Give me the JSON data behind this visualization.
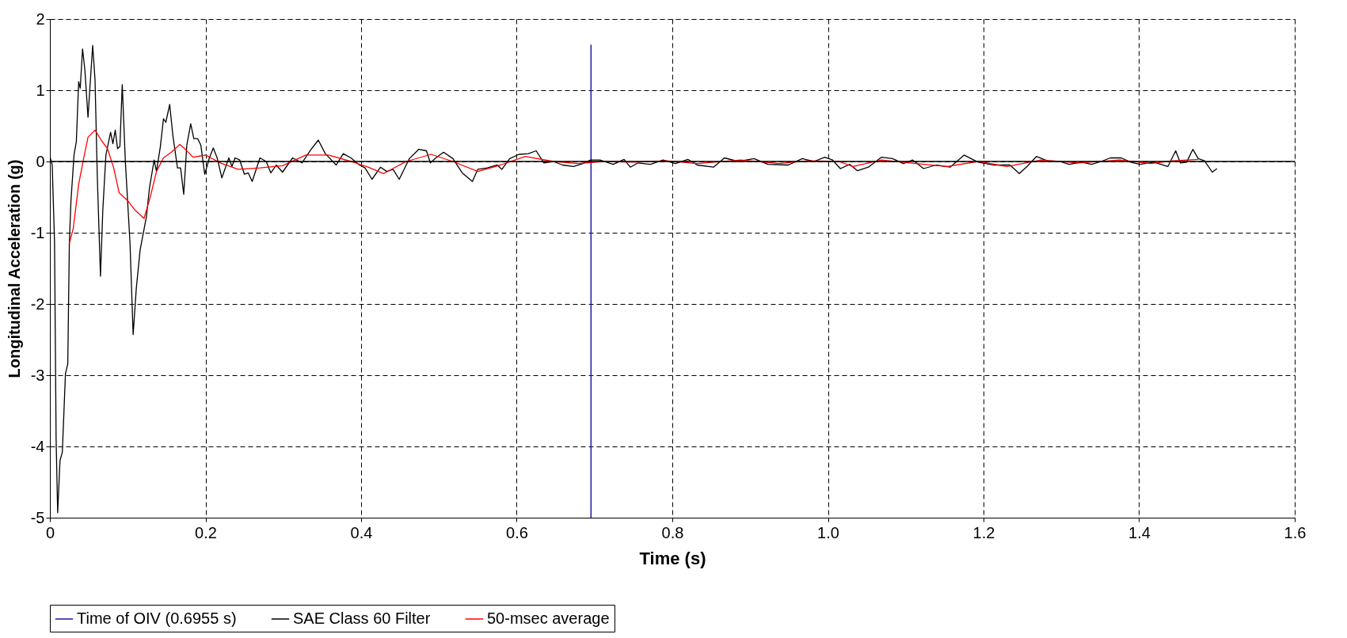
{
  "chart_data": {
    "type": "line",
    "xlabel": "Time (s)",
    "ylabel": "Longitudinal Acceleration (g)",
    "xlim": [
      0,
      1.6
    ],
    "ylim": [
      -5,
      2
    ],
    "xticks": [
      0,
      {
        "value": 0.2,
        "label": "0.2"
      },
      {
        "value": 0.4,
        "label": "0.4"
      },
      {
        "value": 0.6,
        "label": "0.6"
      },
      {
        "value": 0.8,
        "label": "0.8"
      },
      {
        "value": 1,
        "label": "1.0"
      },
      {
        "value": 1.2,
        "label": "1.2"
      },
      {
        "value": 1.4,
        "label": "1.4"
      },
      {
        "value": 1.6,
        "label": "1.6"
      }
    ],
    "yticks": [
      -5,
      -4,
      -3,
      -2,
      -1,
      0,
      1,
      2
    ],
    "grid": true,
    "legend": "bottom left",
    "line_style": "solid",
    "marker": "none",
    "ref_lines": [
      {
        "axis": "y",
        "value": 0,
        "color": "#000000"
      }
    ],
    "series": [
      {
        "name": "Time of OIV (0.6955 s)",
        "color": "#1a1a9c",
        "x": [
          0.6955,
          0.6955
        ],
        "values": [
          -5,
          1.64
        ]
      },
      {
        "name": "SAE Class 60 Filter",
        "color": "#000000",
        "x": [
          0,
          0.003,
          0.006,
          0.008,
          0.01,
          0.013,
          0.016,
          0.02,
          0.023,
          0.025,
          0.027,
          0.031,
          0.034,
          0.037,
          0.039,
          0.042,
          0.045,
          0.049,
          0.055,
          0.058,
          0.061,
          0.065,
          0.068,
          0.072,
          0.078,
          0.081,
          0.084,
          0.087,
          0.09,
          0.093,
          0.097,
          0.103,
          0.107,
          0.111,
          0.116,
          0.124,
          0.128,
          0.134,
          0.137,
          0.142,
          0.146,
          0.149,
          0.154,
          0.158,
          0.164,
          0.168,
          0.172,
          0.176,
          0.181,
          0.185,
          0.19,
          0.194,
          0.199,
          0.205,
          0.21,
          0.215,
          0.221,
          0.23,
          0.234,
          0.238,
          0.244,
          0.25,
          0.255,
          0.26,
          0.27,
          0.278,
          0.284,
          0.291,
          0.299,
          0.312,
          0.324,
          0.335,
          0.345,
          0.354,
          0.368,
          0.377,
          0.387,
          0.398,
          0.405,
          0.414,
          0.425,
          0.433,
          0.441,
          0.449,
          0.462,
          0.474,
          0.484,
          0.489,
          0.496,
          0.506,
          0.518,
          0.53,
          0.543,
          0.55,
          0.562,
          0.575,
          0.581,
          0.591,
          0.603,
          0.615,
          0.625,
          0.635,
          0.647,
          0.659,
          0.673,
          0.685,
          0.695,
          0.707,
          0.724,
          0.738,
          0.746,
          0.756,
          0.772,
          0.788,
          0.804,
          0.82,
          0.832,
          0.853,
          0.867,
          0.885,
          0.905,
          0.923,
          0.949,
          0.967,
          0.982,
          0.996,
          1.006,
          1.016,
          1.028,
          1.038,
          1.052,
          1.069,
          1.083,
          1.097,
          1.109,
          1.123,
          1.139,
          1.157,
          1.175,
          1.193,
          1.214,
          1.234,
          1.246,
          1.256,
          1.268,
          1.282,
          1.298,
          1.31,
          1.326,
          1.339,
          1.351,
          1.363,
          1.377,
          1.389,
          1.401,
          1.419,
          1.437,
          1.447,
          1.453,
          1.461,
          1.469,
          1.476,
          1.484,
          1.494,
          1.5
        ],
        "values": [
          0.07,
          -0.05,
          -1.15,
          -3.9,
          -4.93,
          -4.2,
          -4.08,
          -2.98,
          -2.84,
          -1.15,
          -0.57,
          0.09,
          0.28,
          1.12,
          1.03,
          1.58,
          1.28,
          0.62,
          1.63,
          1.15,
          -0.23,
          -1.61,
          -0.69,
          0.09,
          0.41,
          0.25,
          0.44,
          0.18,
          0.21,
          1.08,
          0.0,
          -1.15,
          -2.43,
          -1.79,
          -1.24,
          -0.78,
          -0.37,
          0.02,
          -0.14,
          0.21,
          0.6,
          0.55,
          0.8,
          0.37,
          -0.09,
          -0.09,
          -0.46,
          0.23,
          0.53,
          0.32,
          0.32,
          0.23,
          -0.18,
          0.05,
          0.19,
          0.05,
          -0.23,
          0.05,
          -0.07,
          0.05,
          0.02,
          -0.18,
          -0.16,
          -0.28,
          0.05,
          0,
          -0.16,
          -0.05,
          -0.15,
          0.05,
          -0.02,
          0.16,
          0.3,
          0.11,
          -0.05,
          0.11,
          0.05,
          -0.05,
          -0.09,
          -0.25,
          -0.08,
          -0.14,
          -0.11,
          -0.25,
          0.04,
          0.17,
          0.15,
          -0.02,
          0.05,
          0.13,
          0.04,
          -0.16,
          -0.28,
          -0.11,
          -0.09,
          -0.05,
          -0.11,
          0.04,
          0.1,
          0.11,
          0.15,
          -0.02,
          0,
          -0.05,
          -0.07,
          -0.03,
          0.02,
          0.02,
          -0.04,
          0.03,
          -0.08,
          -0.02,
          -0.04,
          0.02,
          -0.03,
          0.03,
          -0.05,
          -0.08,
          0.05,
          0,
          0.04,
          -0.04,
          -0.05,
          0.04,
          0,
          0.06,
          0.02,
          -0.1,
          -0.04,
          -0.13,
          -0.08,
          0.06,
          0.04,
          -0.03,
          0.02,
          -0.1,
          -0.05,
          -0.08,
          0.09,
          -0.01,
          -0.05,
          -0.05,
          -0.17,
          -0.07,
          0.07,
          0.01,
          0,
          -0.04,
          -0.01,
          -0.04,
          0,
          0.05,
          0.05,
          -0.01,
          -0.04,
          -0.01,
          -0.07,
          0.15,
          -0.02,
          -0.01,
          0.17,
          0.04,
          0.01,
          -0.15,
          -0.1
        ]
      },
      {
        "name": "50-msec average",
        "color": "#ff0000",
        "x": [
          0.025,
          0.03,
          0.037,
          0.043,
          0.049,
          0.058,
          0.066,
          0.074,
          0.082,
          0.089,
          0.1,
          0.11,
          0.121,
          0.129,
          0.137,
          0.146,
          0.157,
          0.167,
          0.175,
          0.184,
          0.2,
          0.219,
          0.242,
          0.27,
          0.299,
          0.329,
          0.358,
          0.387,
          0.409,
          0.429,
          0.458,
          0.49,
          0.518,
          0.55,
          0.579,
          0.611,
          0.647,
          0.679,
          0.711,
          0.752,
          0.792,
          0.832,
          0.888,
          0.937,
          0.974,
          1.014,
          1.032,
          1.069,
          1.113,
          1.153,
          1.193,
          1.23,
          1.274,
          1.322,
          1.375,
          1.415,
          1.443,
          1.476
        ],
        "values": [
          -1.15,
          -0.94,
          -0.32,
          0.02,
          0.34,
          0.44,
          0.3,
          0.18,
          -0.09,
          -0.44,
          -0.55,
          -0.69,
          -0.8,
          -0.5,
          -0.14,
          0.05,
          0.14,
          0.24,
          0.16,
          0.06,
          0.09,
          -0.02,
          -0.11,
          -0.09,
          -0.06,
          0.09,
          0.09,
          0,
          -0.08,
          -0.17,
          0,
          0.1,
          0,
          -0.14,
          -0.05,
          0.07,
          0,
          -0.03,
          0,
          -0.01,
          0.01,
          -0.03,
          0.02,
          -0.03,
          0.01,
          0,
          -0.07,
          0.02,
          -0.03,
          -0.07,
          0,
          -0.07,
          0.02,
          -0.02,
          0.02,
          -0.03,
          0.01,
          0.03
        ]
      }
    ]
  }
}
